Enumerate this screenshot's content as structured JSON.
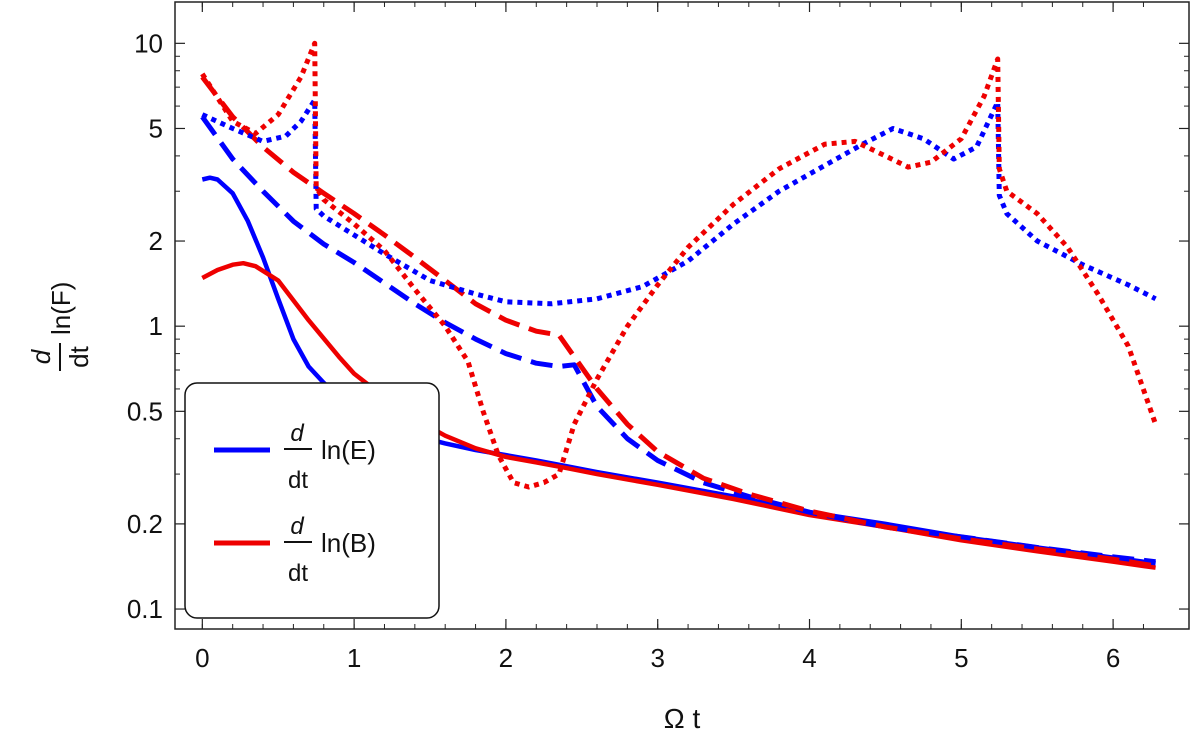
{
  "chart_data": {
    "type": "line",
    "xlabel": "Ω t",
    "ylabel": {
      "numerator": "d",
      "denominator": "dt",
      "function": "ln(F)"
    },
    "xlim": [
      -0.18,
      6.5
    ],
    "ylim": [
      0.085,
      14
    ],
    "yscale": "log",
    "xticks": [
      0,
      1,
      2,
      3,
      4,
      5,
      6
    ],
    "xtick_labels": [
      "0",
      "1",
      "2",
      "3",
      "4",
      "5",
      "6"
    ],
    "yticks": [
      0.1,
      0.2,
      0.5,
      1,
      2,
      5,
      10
    ],
    "ytick_labels": [
      "0.1",
      "0.2",
      "0.5",
      "1",
      "2",
      "5",
      "10"
    ],
    "legend": {
      "position": "bottom-left",
      "entries": [
        {
          "numerator": "d",
          "denominator": "dt",
          "function": "ln(E)",
          "color": "#0000ff"
        },
        {
          "numerator": "d",
          "denominator": "dt",
          "function": "ln(B)",
          "color": "#ee0000"
        }
      ]
    },
    "series": [
      {
        "name": "d/dt ln(E) solid",
        "color": "#0000ff",
        "style": "solid",
        "x": [
          0,
          0.05,
          0.1,
          0.2,
          0.3,
          0.4,
          0.5,
          0.6,
          0.7,
          0.8,
          0.9,
          1.0,
          1.2,
          1.4,
          1.6,
          1.8,
          2.0,
          2.2,
          2.4,
          2.6,
          3.0,
          3.5,
          4.0,
          4.5,
          5.0,
          5.5,
          6.0,
          6.28
        ],
        "y": [
          3.3,
          3.35,
          3.3,
          2.95,
          2.35,
          1.75,
          1.25,
          0.9,
          0.72,
          0.63,
          0.56,
          0.51,
          0.45,
          0.41,
          0.385,
          0.365,
          0.35,
          0.335,
          0.32,
          0.305,
          0.28,
          0.25,
          0.22,
          0.2,
          0.18,
          0.165,
          0.152,
          0.145
        ]
      },
      {
        "name": "d/dt ln(B) solid",
        "color": "#ee0000",
        "style": "solid",
        "x": [
          0,
          0.1,
          0.2,
          0.27,
          0.35,
          0.5,
          0.7,
          0.9,
          1.0,
          1.2,
          1.4,
          1.6,
          1.8,
          2.0,
          2.2,
          2.4,
          2.6,
          3.0,
          3.5,
          4.0,
          4.5,
          5.0,
          5.5,
          6.0,
          6.28
        ],
        "y": [
          1.48,
          1.58,
          1.65,
          1.67,
          1.63,
          1.45,
          1.05,
          0.78,
          0.68,
          0.56,
          0.47,
          0.41,
          0.37,
          0.345,
          0.33,
          0.315,
          0.3,
          0.275,
          0.245,
          0.215,
          0.195,
          0.175,
          0.16,
          0.147,
          0.14
        ]
      },
      {
        "name": "d/dt ln(E) dashed",
        "color": "#0000ff",
        "style": "dashed",
        "x": [
          0,
          0.2,
          0.4,
          0.6,
          0.8,
          1.0,
          1.2,
          1.4,
          1.6,
          1.8,
          2.0,
          2.2,
          2.35,
          2.45,
          2.6,
          2.8,
          3.0,
          3.3,
          3.6,
          4.0,
          4.5,
          5.0,
          5.5,
          6.0,
          6.28
        ],
        "y": [
          5.5,
          3.9,
          3.0,
          2.35,
          1.95,
          1.68,
          1.42,
          1.2,
          1.03,
          0.9,
          0.8,
          0.74,
          0.72,
          0.73,
          0.52,
          0.4,
          0.335,
          0.28,
          0.25,
          0.22,
          0.195,
          0.18,
          0.165,
          0.153,
          0.147
        ]
      },
      {
        "name": "d/dt ln(B) dashed",
        "color": "#ee0000",
        "style": "dashed",
        "x": [
          0,
          0.2,
          0.4,
          0.6,
          0.8,
          1.0,
          1.2,
          1.4,
          1.6,
          1.8,
          2.0,
          2.2,
          2.35,
          2.45,
          2.6,
          2.8,
          3.0,
          3.3,
          3.6,
          4.0,
          4.5,
          5.0,
          5.5,
          6.0,
          6.28
        ],
        "y": [
          7.6,
          5.5,
          4.3,
          3.5,
          2.95,
          2.5,
          2.1,
          1.75,
          1.45,
          1.2,
          1.05,
          0.96,
          0.93,
          0.78,
          0.6,
          0.45,
          0.36,
          0.29,
          0.255,
          0.222,
          0.195,
          0.177,
          0.163,
          0.15,
          0.142
        ]
      },
      {
        "name": "d/dt ln(E) dotted",
        "color": "#0000ff",
        "style": "dotted",
        "x": [
          0,
          0.2,
          0.4,
          0.55,
          0.65,
          0.74,
          0.75,
          0.8,
          1.0,
          1.2,
          1.5,
          1.8,
          2.0,
          2.3,
          2.6,
          2.9,
          3.2,
          3.5,
          3.8,
          4.1,
          4.35,
          4.55,
          4.75,
          4.95,
          5.1,
          5.24,
          5.25,
          5.3,
          5.5,
          5.8,
          6.1,
          6.28
        ],
        "y": [
          5.6,
          5.0,
          4.5,
          4.7,
          5.3,
          6.3,
          2.6,
          2.45,
          2.1,
          1.8,
          1.45,
          1.3,
          1.22,
          1.2,
          1.25,
          1.38,
          1.7,
          2.3,
          3.0,
          3.7,
          4.4,
          5.0,
          4.6,
          3.9,
          4.3,
          6.2,
          2.9,
          2.5,
          2.0,
          1.65,
          1.4,
          1.25
        ]
      },
      {
        "name": "d/dt ln(B) dotted",
        "color": "#ee0000",
        "style": "dotted",
        "x": [
          0,
          0.2,
          0.35,
          0.5,
          0.65,
          0.74,
          0.75,
          0.8,
          1.0,
          1.2,
          1.4,
          1.6,
          1.75,
          1.85,
          1.95,
          2.05,
          2.15,
          2.25,
          2.35,
          2.45,
          2.6,
          2.8,
          3.0,
          3.2,
          3.5,
          3.8,
          4.1,
          4.3,
          4.5,
          4.65,
          4.8,
          5.0,
          5.15,
          5.24,
          5.25,
          5.3,
          5.5,
          5.7,
          5.9,
          6.1,
          6.28
        ],
        "y": [
          7.8,
          5.3,
          4.8,
          5.6,
          7.6,
          10.0,
          3.1,
          2.8,
          2.3,
          1.85,
          1.35,
          1.0,
          0.75,
          0.5,
          0.35,
          0.28,
          0.27,
          0.28,
          0.3,
          0.45,
          0.65,
          1.0,
          1.4,
          1.9,
          2.7,
          3.6,
          4.4,
          4.5,
          4.0,
          3.65,
          3.8,
          4.6,
          6.5,
          8.8,
          3.6,
          3.0,
          2.5,
          1.9,
          1.3,
          0.85,
          0.45
        ]
      }
    ]
  }
}
